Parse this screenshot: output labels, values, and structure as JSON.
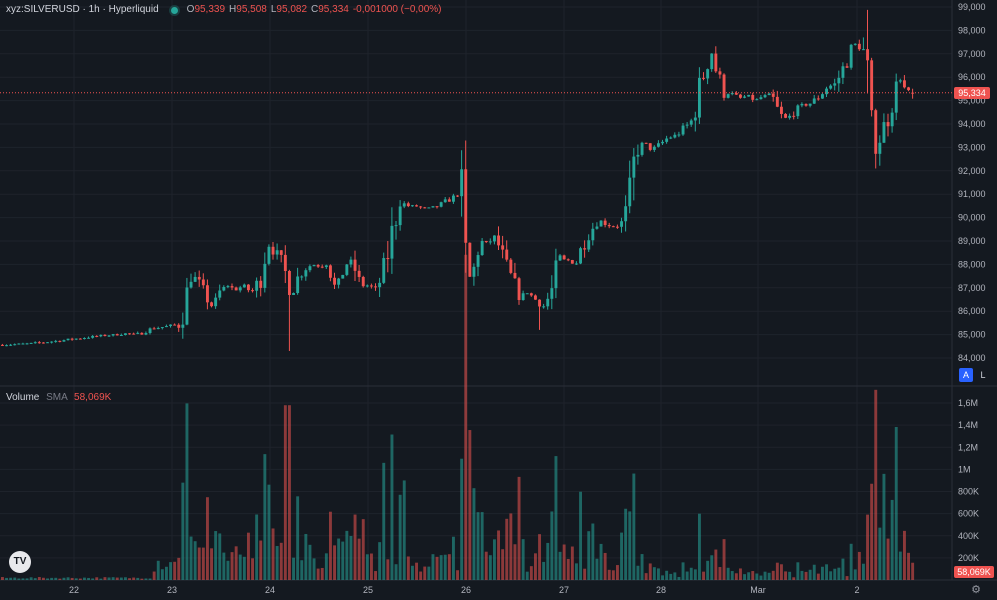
{
  "legend": {
    "symbol": "xyz:SILVERUSD · 1h · Hyperliquid",
    "open_label": "O",
    "open": "95,339",
    "high_label": "H",
    "high": "95,508",
    "low_label": "L",
    "low": "95,082",
    "close_label": "C",
    "close": "95,334",
    "change": "-0,001000 (−0,00%)"
  },
  "volume_legend": {
    "title": "Volume",
    "study": "SMA",
    "value": "58,069K"
  },
  "price_tag": "95,334",
  "volume_tag": "58,069K",
  "scale_buttons": {
    "auto": "A",
    "log": "L"
  },
  "logo_text": "TV",
  "colors": {
    "up": "#26a69a",
    "down": "#ef5350",
    "background": "#141920",
    "grid": "#1e232b"
  },
  "chart_data": [
    {
      "type": "candlestick",
      "title": "xyz:SILVERUSD · 1h · Hyperliquid",
      "ylim": [
        83500,
        99200
      ],
      "y_ticks": [
        "84,000",
        "85,000",
        "86,000",
        "87,000",
        "88,000",
        "89,000",
        "90,000",
        "91,000",
        "92,000",
        "93,000",
        "94,000",
        "95,000",
        "96,000",
        "97,000",
        "98,000",
        "99,000"
      ],
      "x_ticks": [
        "22",
        "23",
        "24",
        "25",
        "26",
        "27",
        "28",
        "Mar",
        "2"
      ],
      "last_price": 95334,
      "grid": true,
      "close_path": [
        [
          0,
          84560
        ],
        [
          30,
          84620
        ],
        [
          60,
          84750
        ],
        [
          85,
          84880
        ],
        [
          100,
          84950
        ],
        [
          115,
          85000
        ],
        [
          125,
          85050
        ],
        [
          135,
          85000
        ],
        [
          150,
          85250
        ],
        [
          165,
          85350
        ],
        [
          178,
          85450
        ],
        [
          183,
          86200
        ],
        [
          190,
          87600
        ],
        [
          197,
          87200
        ],
        [
          205,
          86600
        ],
        [
          212,
          86100
        ],
        [
          218,
          86800
        ],
        [
          226,
          87100
        ],
        [
          234,
          86900
        ],
        [
          242,
          87100
        ],
        [
          250,
          86800
        ],
        [
          258,
          87300
        ],
        [
          266,
          88900
        ],
        [
          274,
          88500
        ],
        [
          282,
          87900
        ],
        [
          290,
          86700
        ],
        [
          296,
          87400
        ],
        [
          303,
          87800
        ],
        [
          311,
          88000
        ],
        [
          319,
          87900
        ],
        [
          327,
          88100
        ],
        [
          335,
          86700
        ],
        [
          343,
          88000
        ],
        [
          351,
          88100
        ],
        [
          359,
          87100
        ],
        [
          367,
          87100
        ],
        [
          375,
          86900
        ],
        [
          383,
          87800
        ],
        [
          390,
          89200
        ],
        [
          398,
          90700
        ],
        [
          406,
          90500
        ],
        [
          414,
          90500
        ],
        [
          421,
          90400
        ],
        [
          429,
          90400
        ],
        [
          437,
          90500
        ],
        [
          445,
          90700
        ],
        [
          453,
          90900
        ],
        [
          460,
          91000
        ],
        [
          464,
          88100
        ],
        [
          470,
          87200
        ],
        [
          478,
          89000
        ],
        [
          486,
          88900
        ],
        [
          494,
          89200
        ],
        [
          502,
          88200
        ],
        [
          510,
          87400
        ],
        [
          518,
          86600
        ],
        [
          526,
          86800
        ],
        [
          534,
          86500
        ],
        [
          542,
          86200
        ],
        [
          550,
          86800
        ],
        [
          558,
          88200
        ],
        [
          566,
          88200
        ],
        [
          574,
          88000
        ],
        [
          582,
          88900
        ],
        [
          590,
          89500
        ],
        [
          598,
          89900
        ],
        [
          606,
          89700
        ],
        [
          614,
          89600
        ],
        [
          622,
          89800
        ],
        [
          630,
          91100
        ],
        [
          634,
          92900
        ],
        [
          642,
          93200
        ],
        [
          650,
          92900
        ],
        [
          658,
          93100
        ],
        [
          666,
          93400
        ],
        [
          674,
          93500
        ],
        [
          682,
          93800
        ],
        [
          690,
          94100
        ],
        [
          698,
          95500
        ],
        [
          704,
          96400
        ],
        [
          710,
          97100
        ],
        [
          716,
          96100
        ],
        [
          722,
          95300
        ],
        [
          730,
          95300
        ],
        [
          738,
          95100
        ],
        [
          746,
          95200
        ],
        [
          754,
          95000
        ],
        [
          762,
          95200
        ],
        [
          770,
          95200
        ],
        [
          778,
          94400
        ],
        [
          786,
          94200
        ],
        [
          794,
          94600
        ],
        [
          802,
          94800
        ],
        [
          810,
          94900
        ],
        [
          818,
          95200
        ],
        [
          826,
          95600
        ],
        [
          834,
          95700
        ],
        [
          842,
          96400
        ],
        [
          850,
          97200
        ],
        [
          856,
          97500
        ],
        [
          862,
          97000
        ],
        [
          866,
          95700
        ],
        [
          872,
          92400
        ],
        [
          880,
          93700
        ],
        [
          886,
          94200
        ],
        [
          892,
          95200
        ],
        [
          898,
          96000
        ],
        [
          904,
          95400
        ],
        [
          910,
          95334
        ]
      ],
      "wick_spikes": [
        {
          "x": 286,
          "low": 84300
        },
        {
          "x": 540,
          "low": 85200
        },
        {
          "x": 874,
          "low": 92100
        },
        {
          "x": 862,
          "high": 97700
        }
      ]
    },
    {
      "type": "bar",
      "title": "Volume",
      "sma": "58,069K",
      "ylim": [
        0,
        1700000
      ],
      "y_ticks": [
        "200K",
        "400K",
        "600K",
        "800K",
        "1M",
        "1,2M",
        "1,4M",
        "1,6M"
      ],
      "spikes": [
        {
          "x": 180,
          "value": 880000,
          "dir": "up"
        },
        {
          "x": 286,
          "value": 1580000,
          "dir": "down"
        },
        {
          "x": 404,
          "value": 900000,
          "dir": "down"
        },
        {
          "x": 472,
          "value": 830000,
          "dir": "down"
        },
        {
          "x": 628,
          "value": 620000,
          "dir": "up"
        },
        {
          "x": 872,
          "value": 870000,
          "dir": "down"
        }
      ],
      "baseline_level": 12000
    }
  ]
}
